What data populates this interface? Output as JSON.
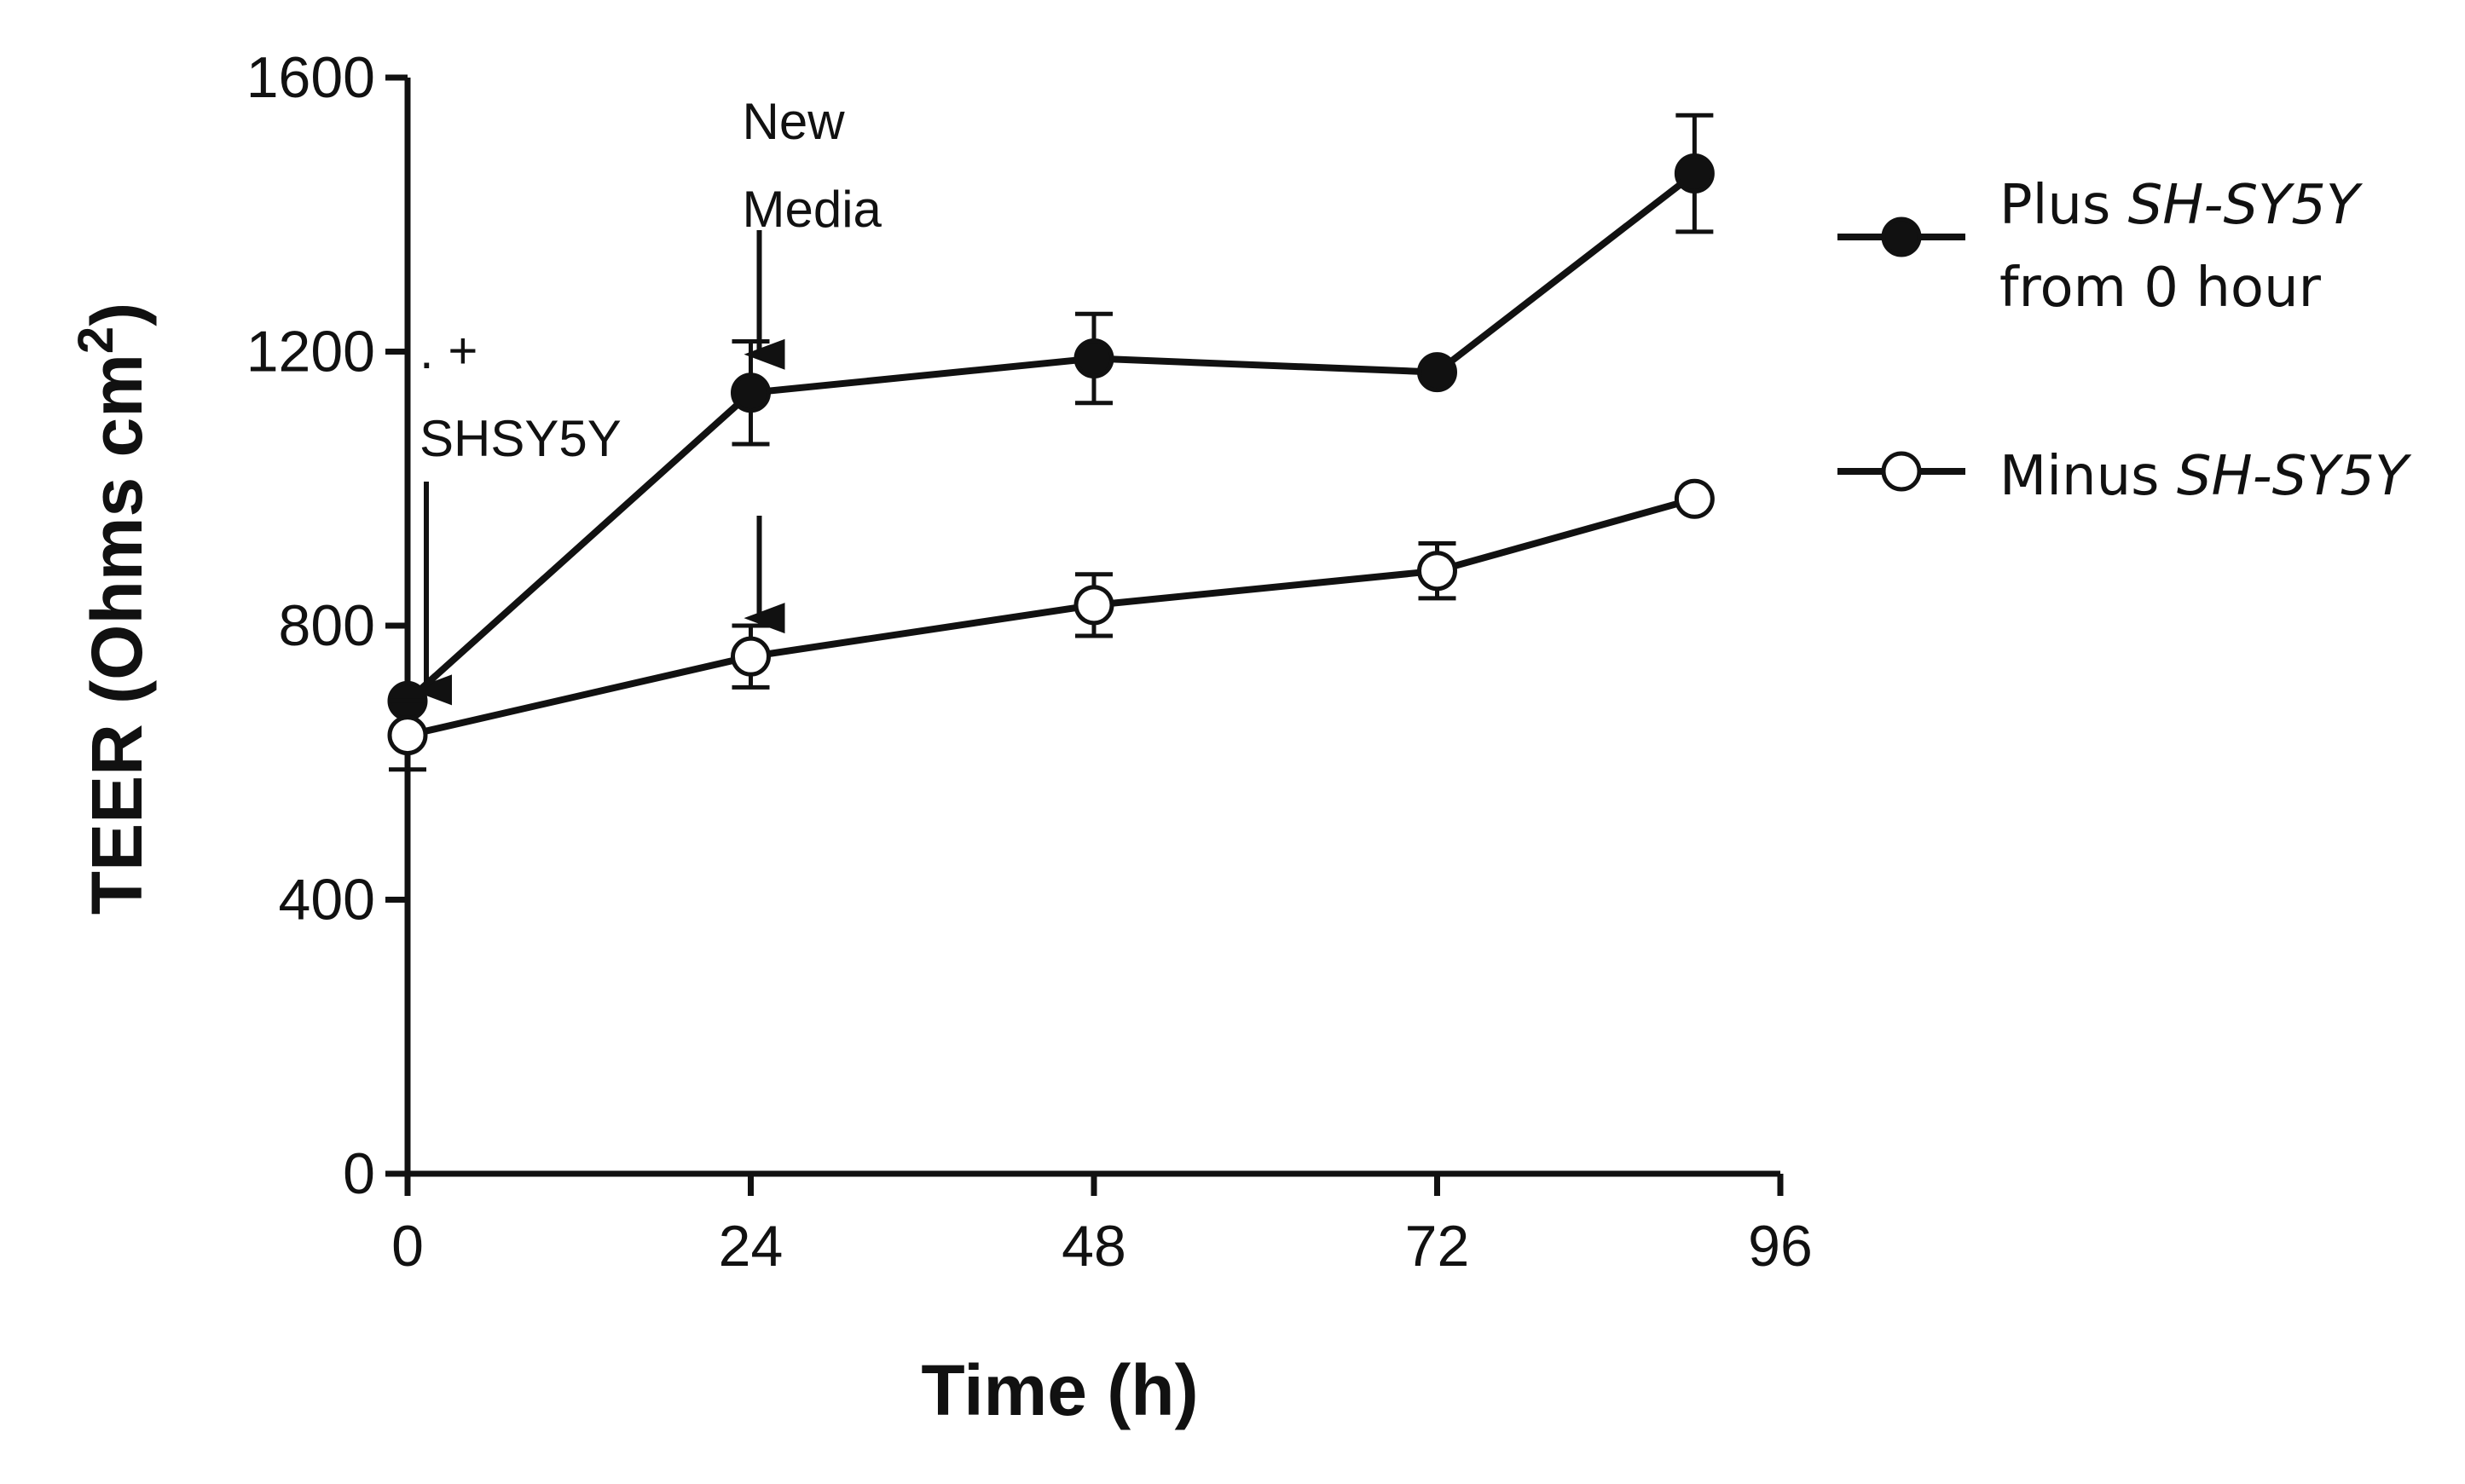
{
  "chart_data": {
    "type": "line",
    "title": "",
    "xlabel": "Time (h)",
    "ylabel": "TEER (Ohms cm2)",
    "ylabel_parts": {
      "main": "TEER (Ohms cm",
      "sup": "2",
      "close": ")"
    },
    "xlim": [
      0,
      96
    ],
    "ylim": [
      0,
      1600
    ],
    "xticks": [
      0,
      24,
      48,
      72,
      96
    ],
    "yticks": [
      0,
      400,
      800,
      1200,
      1600
    ],
    "grid": false,
    "legend_position": "right",
    "series": [
      {
        "name": "Plus SH-SY5Y from 0 hour",
        "legend_lines": [
          {
            "plain": "Plus ",
            "italic": "SH-SY5Y"
          },
          {
            "plain": "from 0 hour",
            "italic": ""
          }
        ],
        "marker": "filled-circle",
        "color": "#111111",
        "x": [
          0,
          24,
          48,
          72,
          90
        ],
        "y": [
          690,
          1140,
          1190,
          1170,
          1460
        ],
        "err": [
          0,
          75,
          65,
          0,
          85
        ]
      },
      {
        "name": "Minus SH-SY5Y",
        "legend_lines": [
          {
            "plain": "Minus ",
            "italic": "SH-SY5Y"
          }
        ],
        "marker": "open-circle",
        "color": "#111111",
        "x": [
          0,
          24,
          48,
          72,
          90
        ],
        "y": [
          640,
          755,
          830,
          880,
          985
        ],
        "err": [
          50,
          45,
          45,
          40,
          0
        ]
      }
    ],
    "annotations": [
      {
        "id": "new-media",
        "lines": [
          "New",
          "Media"
        ],
        "arrow_x": 24,
        "arrows_to_series": [
          0,
          1
        ]
      },
      {
        "id": "add-shsy5y",
        "lines": [
          ". +",
          "SHSY5Y"
        ],
        "arrow_x": 0,
        "arrows_to_series": [
          0
        ]
      }
    ]
  }
}
